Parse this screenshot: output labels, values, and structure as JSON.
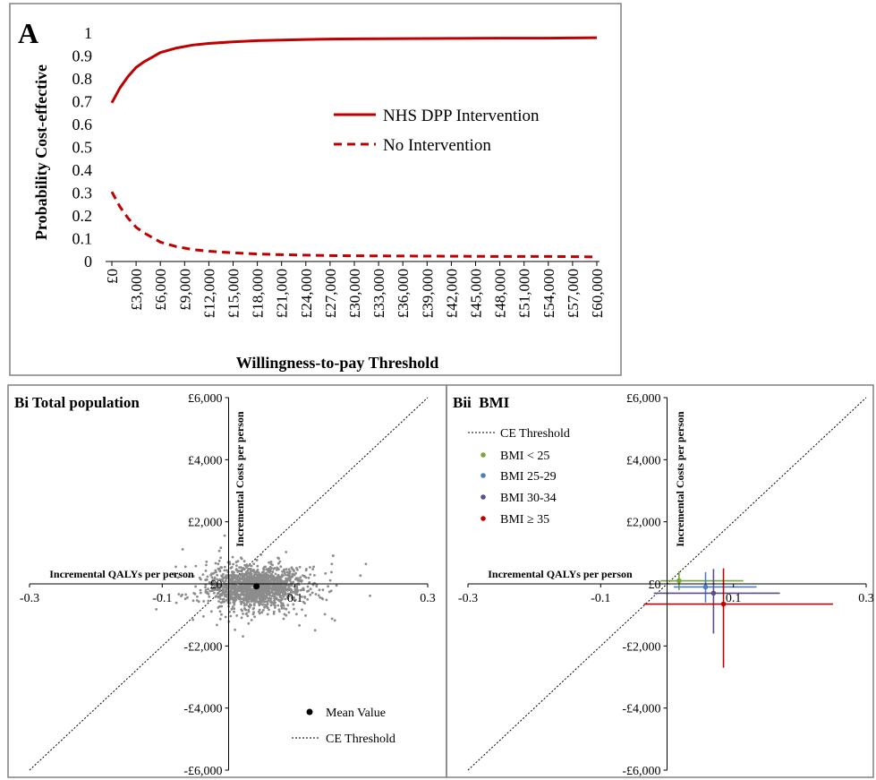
{
  "colors": {
    "red": "#c00000",
    "frame": "#808080",
    "scatter": "#8c8c8c",
    "green": "#77a53c",
    "blue": "#4a7ec1",
    "purple": "#5a4e8c",
    "dark_red": "#c00000"
  },
  "chart_data": [
    {
      "id": "A",
      "type": "line",
      "panel_label": "A",
      "xlabel": "Willingness-to-pay Threshold",
      "ylabel": "Probability Cost-effective",
      "ylim": [
        0,
        1
      ],
      "xlim": [
        0,
        60000
      ],
      "y_ticks": [
        "0",
        "0.1",
        "0.2",
        "0.3",
        "0.4",
        "0.5",
        "0.6",
        "0.7",
        "0.8",
        "0.9",
        "1"
      ],
      "x_ticks": [
        "£0",
        "£3,000",
        "£6,000",
        "£9,000",
        "£12,000",
        "£15,000",
        "£18,000",
        "£21,000",
        "£24,000",
        "£27,000",
        "£30,000",
        "£33,000",
        "£36,000",
        "£39,000",
        "£42,000",
        "£45,000",
        "£48,000",
        "£51,000",
        "£54,000",
        "£57,000",
        "£60,000"
      ],
      "x": [
        0,
        1000,
        2000,
        3000,
        4000,
        5000,
        6000,
        8000,
        10000,
        12000,
        15000,
        18000,
        21000,
        24000,
        27000,
        30000,
        36000,
        42000,
        48000,
        54000,
        57000,
        60000
      ],
      "legend_position": "center-right",
      "series": [
        {
          "name": "NHS DPP Intervention",
          "style": "solid",
          "values": [
            0.695,
            0.76,
            0.81,
            0.85,
            0.875,
            0.895,
            0.915,
            0.935,
            0.948,
            0.955,
            0.962,
            0.967,
            0.97,
            0.972,
            0.974,
            0.975,
            0.976,
            0.977,
            0.978,
            0.978,
            0.979,
            0.98
          ]
        },
        {
          "name": "No Intervention",
          "style": "dashed",
          "values": [
            0.305,
            0.24,
            0.19,
            0.15,
            0.125,
            0.105,
            0.085,
            0.065,
            0.052,
            0.045,
            0.038,
            0.033,
            0.03,
            0.028,
            0.026,
            0.025,
            0.024,
            0.023,
            0.022,
            0.022,
            0.021,
            0.02
          ]
        }
      ]
    },
    {
      "id": "Bi",
      "type": "scatter",
      "panel_label": "Bi Total population",
      "xlabel": "Incremental QALYs per person",
      "ylabel": "Incremental Costs per person",
      "xlim": [
        -0.3,
        0.3
      ],
      "ylim": [
        -6000,
        6000
      ],
      "x_ticks": [
        "-0.3",
        "-0.1",
        "0.1",
        "0.3"
      ],
      "x_tick_values": [
        -0.3,
        -0.1,
        0.1,
        0.3
      ],
      "y_ticks": [
        "£6,000",
        "£4,000",
        "£2,000",
        "£0",
        "-£2,000",
        "-£4,000",
        "-£6,000"
      ],
      "y_tick_values": [
        6000,
        4000,
        2000,
        0,
        -2000,
        -4000,
        -6000
      ],
      "cloud": {
        "center_x": 0.04,
        "center_y": -100,
        "sd_x": 0.035,
        "sd_y": 330,
        "n": 1600
      },
      "mean": {
        "x": 0.042,
        "y": -80
      },
      "legend_position": "bottom-right",
      "legend": [
        {
          "name": "Mean Value",
          "marker": "dot"
        },
        {
          "name": "CE Threshold",
          "marker": "dotted-line"
        }
      ]
    },
    {
      "id": "Bii",
      "type": "scatter",
      "panel_label": "Bii  BMI",
      "xlabel": "Incremental QALYs per person",
      "ylabel": "Incremental Costs per person",
      "xlim": [
        -0.3,
        0.3
      ],
      "ylim": [
        -6000,
        6000
      ],
      "x_ticks": [
        "-0.3",
        "-0.1",
        "0.1",
        "0.3"
      ],
      "x_tick_values": [
        -0.3,
        -0.1,
        0.1,
        0.3
      ],
      "y_ticks": [
        "£6,000",
        "£4,000",
        "£2,000",
        "£0",
        "-£2,000",
        "-£4,000",
        "-£6,000"
      ],
      "y_tick_values": [
        6000,
        4000,
        2000,
        0,
        -2000,
        -4000,
        -6000
      ],
      "legend_position": "top-left",
      "legend": [
        {
          "name": "CE Threshold",
          "marker": "dotted-line"
        },
        {
          "name": "BMI < 25",
          "marker": "dot",
          "color": "#77a53c"
        },
        {
          "name": "BMI 25-29",
          "marker": "dot",
          "color": "#4a7ec1"
        },
        {
          "name": "BMI 30-34",
          "marker": "dot",
          "color": "#5a4e8c"
        },
        {
          "name": "BMI ≥ 35",
          "marker": "dot",
          "color": "#c00000"
        }
      ],
      "series": [
        {
          "name": "BMI < 25",
          "color": "#77a53c",
          "x": 0.018,
          "y": 100,
          "x_lo": -0.01,
          "x_hi": 0.115,
          "y_lo": -200,
          "y_hi": 400
        },
        {
          "name": "BMI 25-29",
          "color": "#4a7ec1",
          "x": 0.058,
          "y": -100,
          "x_lo": 0.01,
          "x_hi": 0.135,
          "y_lo": -600,
          "y_hi": 380
        },
        {
          "name": "BMI 30-34",
          "color": "#5a4e8c",
          "x": 0.07,
          "y": -300,
          "x_lo": -0.02,
          "x_hi": 0.17,
          "y_lo": -1600,
          "y_hi": 480
        },
        {
          "name": "BMI ≥ 35",
          "color": "#c00000",
          "x": 0.085,
          "y": -650,
          "x_lo": -0.035,
          "x_hi": 0.25,
          "y_lo": -2700,
          "y_hi": 500
        }
      ]
    }
  ]
}
